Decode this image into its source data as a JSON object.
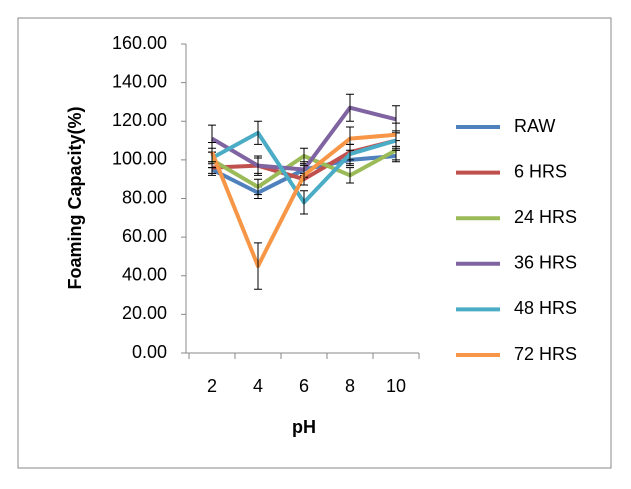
{
  "chart_data": {
    "type": "line",
    "y_label": "Foaming Capacity(%)",
    "x_label": "pH",
    "categories": [
      "2",
      "4",
      "6",
      "8",
      "10"
    ],
    "ylim": [
      0,
      160
    ],
    "yticks": [
      {
        "value": 0,
        "label": "0.00"
      },
      {
        "value": 20,
        "label": "20.00"
      },
      {
        "value": 40,
        "label": "40.00"
      },
      {
        "value": 60,
        "label": "60.00"
      },
      {
        "value": 80,
        "label": "80.00"
      },
      {
        "value": 100,
        "label": "100.00"
      },
      {
        "value": 120,
        "label": "120.00"
      },
      {
        "value": 140,
        "label": "140.00"
      },
      {
        "value": 160,
        "label": "160.00"
      }
    ],
    "legend": "right",
    "series": [
      {
        "name": "RAW",
        "color": "#4f81bd",
        "values": [
          95,
          83,
          95,
          100,
          102
        ],
        "errors": [
          3,
          3,
          3,
          3,
          3
        ]
      },
      {
        "name": "6 HRS",
        "color": "#c0504d",
        "values": [
          96,
          97,
          90,
          104,
          110
        ],
        "errors": [
          3,
          4,
          3,
          4,
          4
        ]
      },
      {
        "name": "24 HRS",
        "color": "#9bbb59",
        "values": [
          100,
          86,
          102,
          92,
          105
        ],
        "errors": [
          4,
          4,
          4,
          4,
          5
        ]
      },
      {
        "name": "36 HRS",
        "color": "#8064a2",
        "values": [
          111,
          97,
          95,
          127,
          121
        ],
        "errors": [
          7,
          5,
          4,
          7,
          7
        ]
      },
      {
        "name": "48 HRS",
        "color": "#4bacc6",
        "values": [
          101,
          114,
          78,
          103,
          110
        ],
        "errors": [
          5,
          6,
          6,
          5,
          5
        ]
      },
      {
        "name": "72 HRS",
        "color": "#f79646",
        "values": [
          104,
          45,
          92,
          111,
          113
        ],
        "errors": [
          5,
          12,
          5,
          6,
          6
        ]
      }
    ]
  }
}
